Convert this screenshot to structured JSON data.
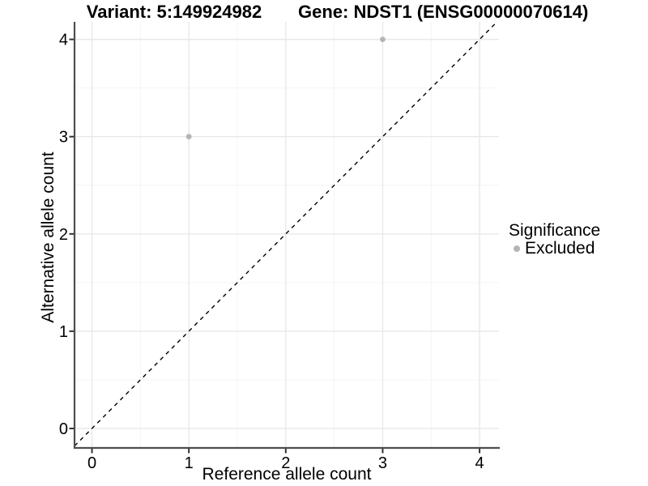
{
  "chart_data": {
    "type": "scatter",
    "title_left": "Variant: 5:149924982",
    "title_right": "Gene: NDST1 (ENSG00000070614)",
    "xlabel": "Reference allele count",
    "ylabel": "Alternative allele count",
    "xlim": [
      -0.18,
      4.2
    ],
    "ylim": [
      -0.2,
      4.18
    ],
    "xticks": [
      0,
      1,
      2,
      3,
      4
    ],
    "yticks": [
      0,
      1,
      2,
      3,
      4
    ],
    "grid": {
      "major": true,
      "minor": true
    },
    "identity_line": {
      "style": "dashed",
      "x1": -0.18,
      "y1": -0.18,
      "x2": 4.18,
      "y2": 4.18
    },
    "series": [
      {
        "name": "Excluded",
        "color": "#b5b5b5",
        "points": [
          {
            "x": 1,
            "y": 3
          },
          {
            "x": 3,
            "y": 4
          }
        ]
      }
    ],
    "legend": {
      "title": "Significance",
      "position": "right",
      "items": [
        {
          "label": "Excluded",
          "color": "#b5b5b5"
        }
      ]
    }
  },
  "colors": {
    "background": "#ffffff",
    "axis_line": "#4e4e4e",
    "tick_mark": "#333333",
    "grid_major": "#e8e8e8",
    "grid_minor": "#f4f4f4",
    "identity_line": "#000000",
    "text": "#000000"
  }
}
